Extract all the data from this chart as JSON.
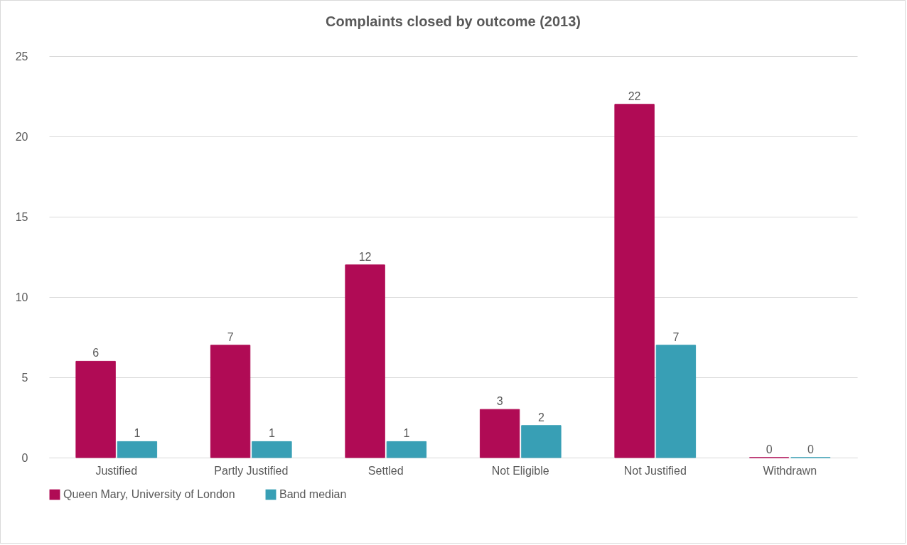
{
  "chart_data": {
    "type": "bar",
    "title": "Complaints closed by outcome (2013)",
    "categories": [
      "Justified",
      "Partly Justified",
      "Settled",
      "Not Eligible",
      "Not Justified",
      "Withdrawn"
    ],
    "series": [
      {
        "name": "Queen Mary, University of London",
        "color": "#b00b55",
        "values": [
          6,
          7,
          12,
          3,
          22,
          0
        ]
      },
      {
        "name": "Band median",
        "color": "#389fb5",
        "values": [
          1,
          1,
          1,
          2,
          7,
          0
        ]
      }
    ],
    "ylim": [
      0,
      25
    ],
    "yticks": [
      0,
      5,
      10,
      15,
      20,
      25
    ],
    "grid": "y",
    "legend": "bottom",
    "data_labels": true
  }
}
